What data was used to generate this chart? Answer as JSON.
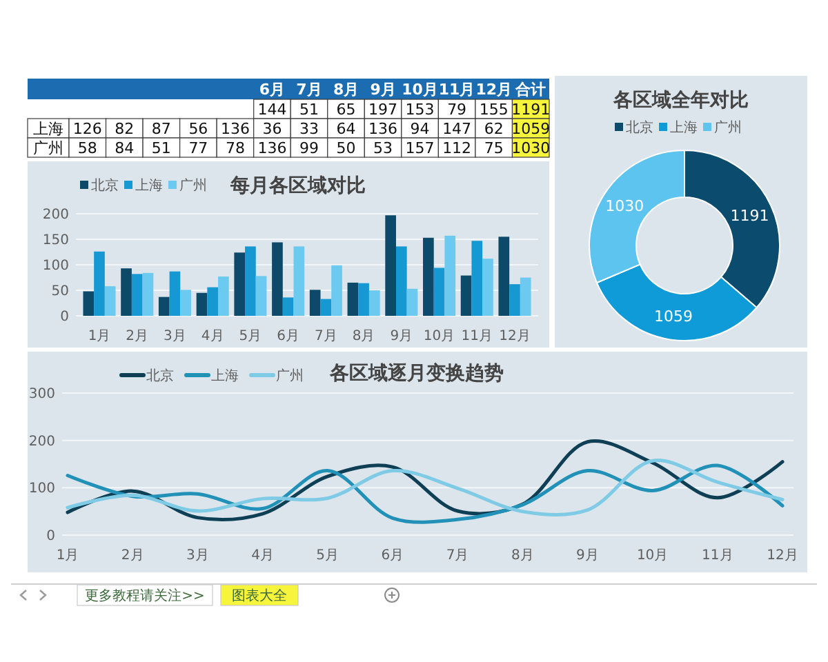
{
  "chart_data": [
    {
      "type": "heatmap",
      "categories": [
        null,
        null,
        null,
        null,
        null,
        "6月",
        "7月",
        "8月",
        "9月",
        "10月",
        "11月",
        "12月",
        "合计"
      ],
      "y_categories": [
        null,
        "上海",
        "广州"
      ],
      "cells": [
        [
          null,
          null,
          null,
          null,
          null,
          144,
          51,
          65,
          197,
          153,
          79,
          155,
          1191
        ],
        [
          126,
          82,
          87,
          56,
          136,
          36,
          33,
          64,
          136,
          94,
          147,
          62,
          1059
        ],
        [
          58,
          84,
          51,
          77,
          78,
          136,
          99,
          50,
          53,
          157,
          112,
          75,
          1030
        ]
      ],
      "data_labels": true
    },
    {
      "type": "bar",
      "title": "每月各区域对比",
      "categories": [
        "1月",
        "2月",
        "3月",
        "4月",
        "5月",
        "6月",
        "7月",
        "8月",
        "9月",
        "10月",
        "11月",
        "12月"
      ],
      "series": [
        {
          "name": "北京",
          "color": "#0d4a6a",
          "values": [
            48,
            93,
            37,
            45,
            124,
            144,
            51,
            65,
            197,
            153,
            79,
            155
          ]
        },
        {
          "name": "上海",
          "color": "#1699d3",
          "values": [
            126,
            82,
            87,
            56,
            136,
            36,
            33,
            64,
            136,
            94,
            147,
            62
          ]
        },
        {
          "name": "广州",
          "color": "#6ccaf0",
          "values": [
            58,
            84,
            51,
            77,
            78,
            136,
            99,
            50,
            53,
            157,
            112,
            75
          ]
        }
      ],
      "ylim": [
        0,
        200
      ],
      "yticks": [
        0,
        50,
        100,
        150,
        200
      ],
      "grid": "y",
      "legend": "top left"
    },
    {
      "type": "donut",
      "title": "各区域全年对比",
      "categories": [
        "北京",
        "上海",
        "广州"
      ],
      "values": [
        1191,
        1059,
        1030
      ],
      "colors": [
        "#0b4b6d",
        "#0f9bd7",
        "#5cc4ee"
      ],
      "data_labels": true,
      "legend": "top"
    },
    {
      "type": "line",
      "title": "各区域逐月变换趋势",
      "categories": [
        "1月",
        "2月",
        "3月",
        "4月",
        "5月",
        "6月",
        "7月",
        "8月",
        "9月",
        "10月",
        "11月",
        "12月"
      ],
      "series": [
        {
          "name": "北京",
          "color": "#0f3f55",
          "values": [
            48,
            93,
            37,
            45,
            124,
            144,
            51,
            65,
            197,
            153,
            79,
            155
          ]
        },
        {
          "name": "上海",
          "color": "#2191b8",
          "values": [
            126,
            82,
            87,
            56,
            136,
            36,
            33,
            64,
            136,
            94,
            147,
            62
          ]
        },
        {
          "name": "广州",
          "color": "#7fcbe6",
          "values": [
            58,
            84,
            51,
            77,
            78,
            136,
            99,
            50,
            53,
            157,
            112,
            75
          ]
        }
      ],
      "ylim": [
        0,
        300
      ],
      "yticks": [
        0,
        100,
        200,
        300
      ],
      "grid": "y",
      "legend": "top left",
      "annotations": [
        "更多教程请关注>>",
        "图表大全"
      ]
    }
  ]
}
